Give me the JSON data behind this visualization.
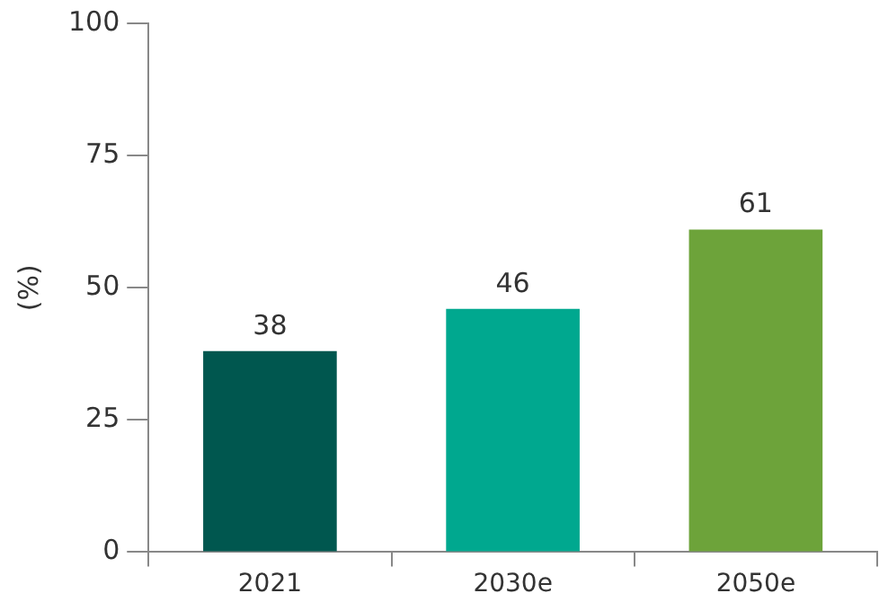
{
  "chart_data": {
    "type": "bar",
    "ylabel": "(%)",
    "categories": [
      "2021",
      "2030e",
      "2050e"
    ],
    "values": [
      38,
      46,
      61
    ],
    "colors": [
      "#00574f",
      "#00a88f",
      "#6da33a"
    ],
    "ylim": [
      0,
      100
    ],
    "yticks": [
      0,
      25,
      50,
      75,
      100
    ],
    "grid": false,
    "legend": false,
    "data_labels": true
  }
}
